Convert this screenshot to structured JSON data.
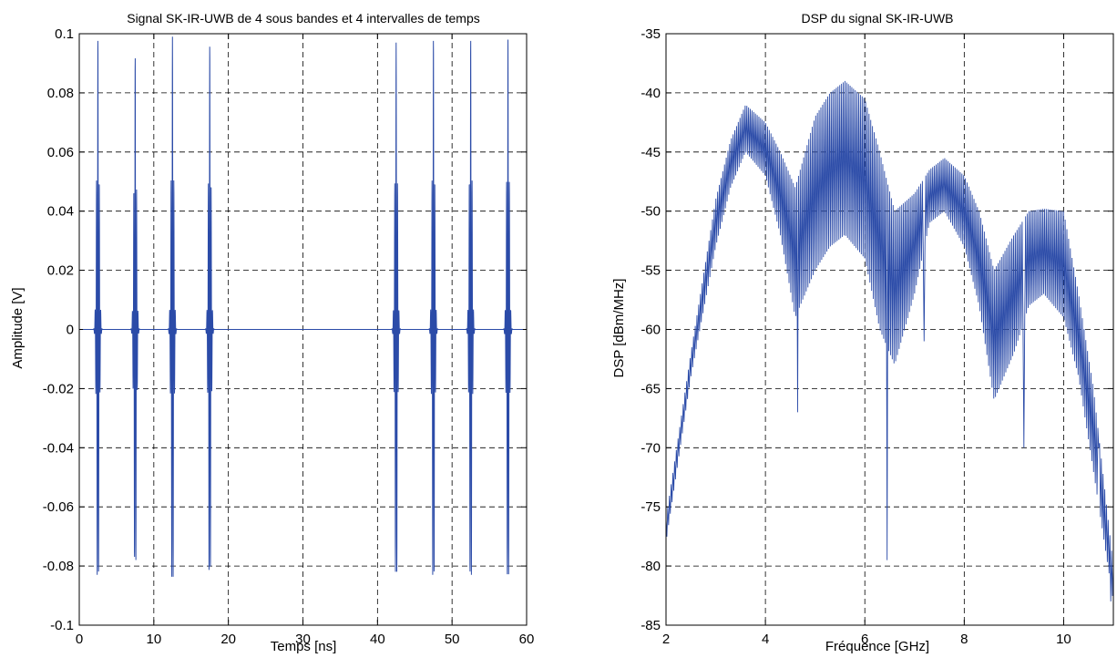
{
  "chart_data": [
    {
      "type": "line",
      "title": "Signal SK-IR-UWB de 4 sous bandes et 4 intervalles de temps",
      "xlabel": "Temps [ns]",
      "ylabel": "Amplitude [V]",
      "xlim": [
        0,
        60
      ],
      "ylim": [
        -0.1,
        0.1
      ],
      "xticks": [
        0,
        10,
        20,
        30,
        40,
        50,
        60
      ],
      "xtick_labels": [
        "0",
        "10",
        "20",
        "30",
        "40",
        "50",
        "60"
      ],
      "yticks": [
        -0.1,
        -0.08,
        -0.06,
        -0.04,
        -0.02,
        0,
        0.02,
        0.04,
        0.06,
        0.08,
        0.1
      ],
      "ytick_labels": [
        "-0.1",
        "-0.08",
        "-0.06",
        "-0.04",
        "-0.02",
        "0",
        "0.02",
        "0.04",
        "0.06",
        "0.08",
        "0.1"
      ],
      "grid": true,
      "grid_style": "dashed",
      "line_color": "#2B4BA8",
      "pulses": [
        {
          "center_ns": 2.5,
          "peak_amplitude": 0.099
        },
        {
          "center_ns": 7.5,
          "peak_amplitude": 0.093
        },
        {
          "center_ns": 12.5,
          "peak_amplitude": 0.099
        },
        {
          "center_ns": 17.5,
          "peak_amplitude": 0.097
        },
        {
          "center_ns": 42.5,
          "peak_amplitude": 0.097
        },
        {
          "center_ns": 47.5,
          "peak_amplitude": 0.099
        },
        {
          "center_ns": 52.5,
          "peak_amplitude": 0.099
        },
        {
          "center_ns": 57.5,
          "peak_amplitude": 0.098
        }
      ]
    },
    {
      "type": "line",
      "title": "DSP du signal SK-IR-UWB",
      "xlabel": "Fréquence [GHz]",
      "ylabel": "DSP [dBm/MHz]",
      "xlim": [
        2,
        11
      ],
      "ylim": [
        -85,
        -35
      ],
      "xticks": [
        2,
        4,
        6,
        8,
        10
      ],
      "xtick_labels": [
        "2",
        "4",
        "6",
        "8",
        "10"
      ],
      "yticks": [
        -85,
        -80,
        -75,
        -70,
        -65,
        -60,
        -55,
        -50,
        -45,
        -40,
        -35
      ],
      "ytick_labels": [
        "-85",
        "-80",
        "-75",
        "-70",
        "-65",
        "-60",
        "-55",
        "-50",
        "-45",
        "-40",
        "-35"
      ],
      "grid": true,
      "grid_style": "dashed",
      "line_color": "#2B4BA8",
      "envelope_upper": {
        "x": [
          2.0,
          2.5,
          3.0,
          3.3,
          3.6,
          4.0,
          4.3,
          4.6,
          5.0,
          5.3,
          5.6,
          6.0,
          6.3,
          6.6,
          7.0,
          7.3,
          7.6,
          8.0,
          8.3,
          8.6,
          9.0,
          9.3,
          9.6,
          10.0,
          10.3,
          10.6,
          11.0
        ],
        "y": [
          -76,
          -62,
          -49,
          -44,
          -41,
          -42.5,
          -45,
          -48,
          -42,
          -40,
          -39,
          -40.5,
          -45,
          -50,
          -48.5,
          -46.5,
          -45.5,
          -47,
          -50,
          -55,
          -52,
          -50,
          -49.8,
          -50,
          -57,
          -65,
          -80
        ]
      },
      "envelope_lower": {
        "x": [
          2.0,
          2.5,
          3.0,
          3.3,
          3.6,
          4.0,
          4.3,
          4.6,
          5.0,
          5.3,
          5.6,
          6.0,
          6.3,
          6.6,
          7.0,
          7.3,
          7.6,
          8.0,
          8.3,
          8.6,
          9.0,
          9.3,
          9.6,
          10.0,
          10.3,
          10.6,
          11.0
        ],
        "y": [
          -78,
          -64,
          -53,
          -48,
          -45,
          -47,
          -52,
          -59,
          -55,
          -53,
          -52,
          -54,
          -60,
          -63,
          -57,
          -51,
          -50,
          -53,
          -58,
          -66,
          -62,
          -58,
          -57,
          -59,
          -64,
          -72,
          -83
        ]
      },
      "notable_dips": [
        {
          "x": 4.65,
          "y": -67
        },
        {
          "x": 6.45,
          "y": -79.5
        },
        {
          "x": 7.2,
          "y": -61
        },
        {
          "x": 9.2,
          "y": -70
        },
        {
          "x": 10.7,
          "y": -70
        },
        {
          "x": 10.95,
          "y": -83
        }
      ]
    }
  ]
}
